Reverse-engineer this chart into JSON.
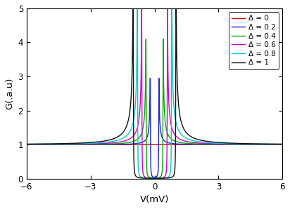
{
  "title": "",
  "xlabel": "V(mV)",
  "ylabel": "G(.a.u)",
  "xlim": [
    -6,
    6
  ],
  "ylim": [
    0,
    5
  ],
  "xticks": [
    -6,
    -3,
    0,
    3,
    6
  ],
  "yticks": [
    0,
    1,
    2,
    3,
    4,
    5
  ],
  "deltas": [
    0,
    0.2,
    0.4,
    0.6,
    0.8,
    1.0
  ],
  "colors": [
    "#cc0000",
    "#2222cc",
    "#00aa00",
    "#cc00cc",
    "#00cccc",
    "#111111"
  ],
  "legend_labels": [
    "Δ = 0",
    "Δ = 0.2",
    "Δ = 0.4",
    "Δ = 0.6",
    "Δ = 0.8",
    "Δ = 1"
  ],
  "linewidth": 1.0,
  "gamma": 0.008,
  "figsize": [
    4.12,
    2.98
  ],
  "dpi": 100,
  "legend_fontsize": 7.5,
  "tick_fontsize": 8.5,
  "label_fontsize": 9.5
}
